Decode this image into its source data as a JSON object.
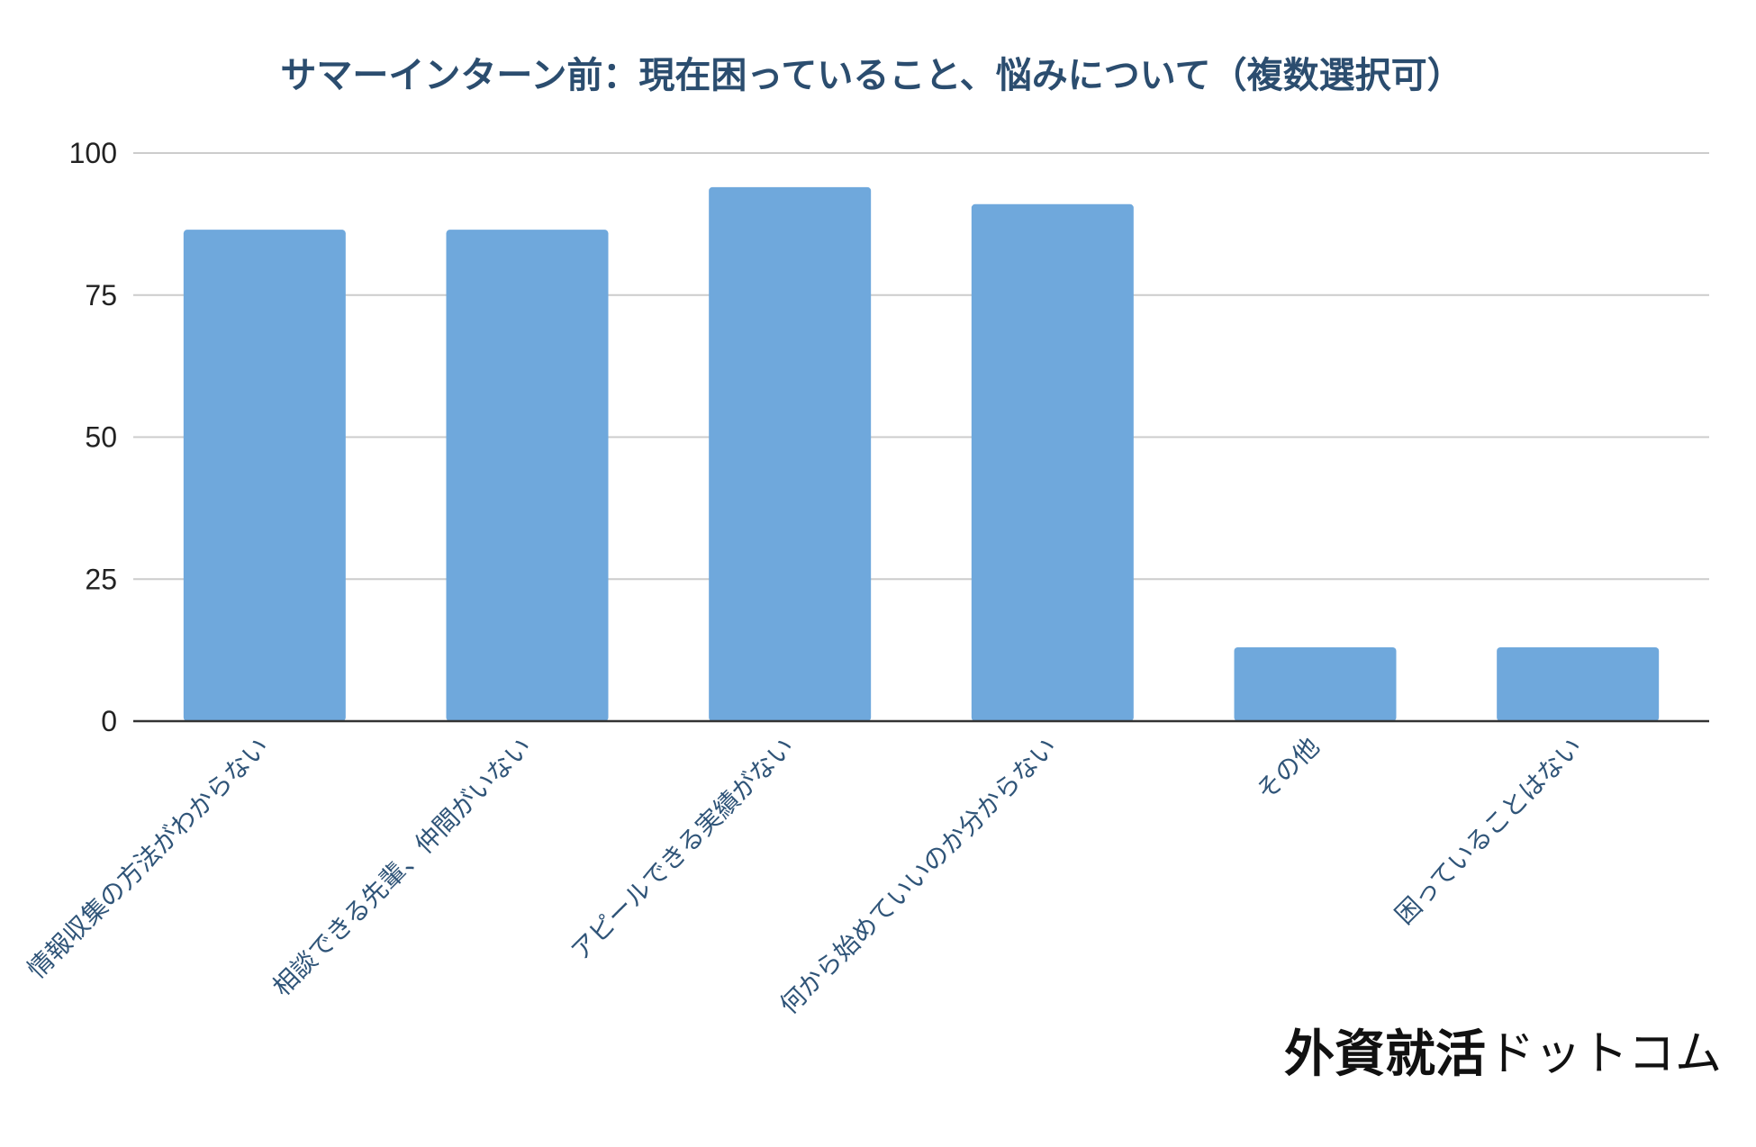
{
  "chart_data": {
    "type": "bar",
    "title": "サマーインターン前：現在困っていること、悩みについて（複数選択可）",
    "xlabel": "",
    "ylabel": "",
    "categories": [
      "情報収集の方法がわからない",
      "相談できる先輩、仲間がいない",
      "アピールできる実績がない",
      "何から始めていいのか分からない",
      "その他",
      "困っていることはない"
    ],
    "values": [
      86.5,
      86.5,
      94,
      91,
      13,
      13
    ],
    "ylim": [
      0,
      100
    ],
    "yticks": [
      0,
      25,
      50,
      75,
      100
    ],
    "grid": true,
    "legend": "none",
    "bar_color": "#6fa8dc",
    "grid_color": "#cccccc",
    "axis_color": "#333333"
  },
  "watermark": {
    "main": "外資就活",
    "sub": "ドットコム"
  }
}
